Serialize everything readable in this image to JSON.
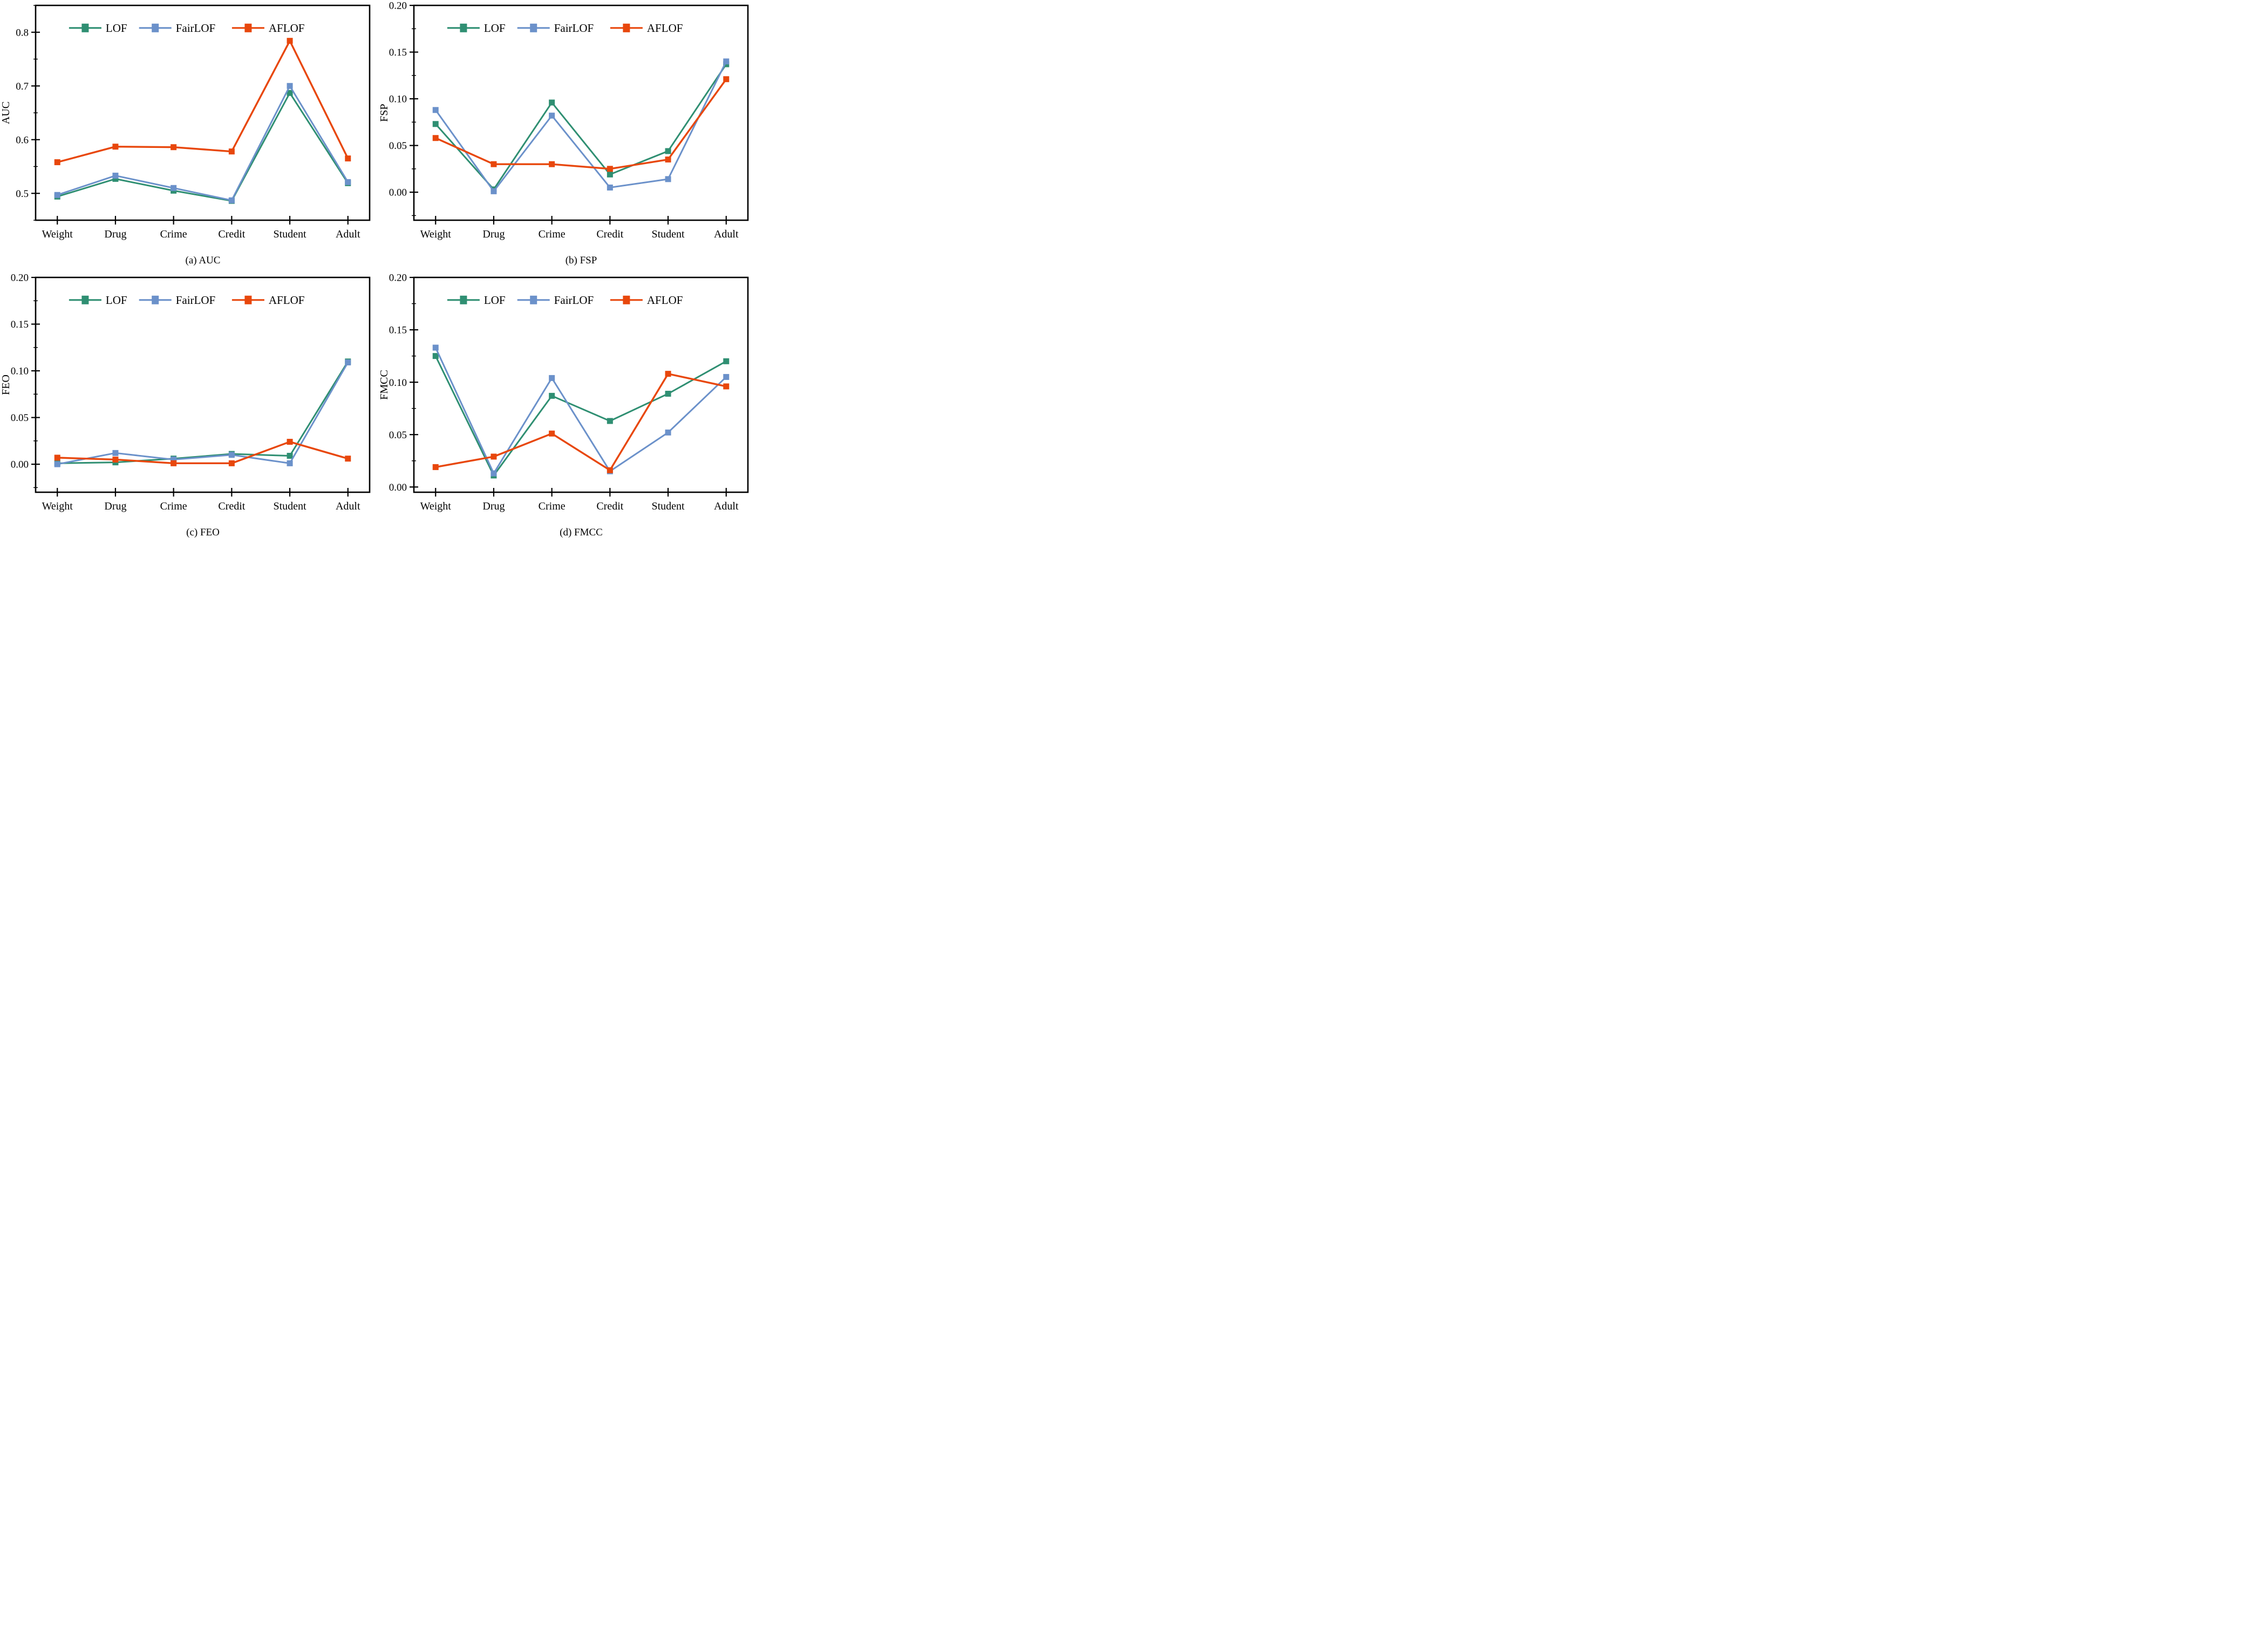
{
  "page": {
    "background": "#ffffff"
  },
  "colors": {
    "lof": "#2f8f72",
    "fairlof": "#6b91ca",
    "aflof": "#e8470c",
    "axis": "#000000",
    "text": "#000000"
  },
  "legend": {
    "items": [
      "LOF",
      "FairLOF",
      "AFLOF"
    ]
  },
  "chart_data": [
    {
      "type": "line",
      "title": "(a) AUC",
      "ylabel": "AUC",
      "xlabel": "",
      "categories": [
        "Weight",
        "Drug",
        "Crime",
        "Credit",
        "Student",
        "Adult"
      ],
      "ylim": [
        0.45,
        0.85
      ],
      "yticks": [
        0.5,
        0.6,
        0.7,
        0.8
      ],
      "ytick_labels": [
        "0.5",
        "0.6",
        "0.7",
        "0.8"
      ],
      "minor_step": 0.05,
      "grid": false,
      "legend_position": "top-inside",
      "series": [
        {
          "name": "LOF",
          "color_key": "lof",
          "values": [
            0.494,
            0.527,
            0.505,
            0.486,
            0.687,
            0.519
          ]
        },
        {
          "name": "FairLOF",
          "color_key": "fairlof",
          "values": [
            0.497,
            0.533,
            0.51,
            0.487,
            0.7,
            0.521
          ]
        },
        {
          "name": "AFLOF",
          "color_key": "aflof",
          "values": [
            0.558,
            0.587,
            0.586,
            0.578,
            0.784,
            0.565
          ]
        }
      ]
    },
    {
      "type": "line",
      "title": "(b) FSP",
      "ylabel": "FSP",
      "xlabel": "",
      "categories": [
        "Weight",
        "Drug",
        "Crime",
        "Credit",
        "Student",
        "Adult"
      ],
      "ylim": [
        -0.03,
        0.2
      ],
      "yticks": [
        0.0,
        0.05,
        0.1,
        0.15,
        0.2
      ],
      "ytick_labels": [
        "0.00",
        "0.05",
        "0.10",
        "0.15",
        "0.20"
      ],
      "minor_step": 0.025,
      "grid": false,
      "legend_position": "top-inside",
      "series": [
        {
          "name": "LOF",
          "color_key": "lof",
          "values": [
            0.073,
            0.003,
            0.096,
            0.019,
            0.044,
            0.137
          ]
        },
        {
          "name": "FairLOF",
          "color_key": "fairlof",
          "values": [
            0.088,
            0.001,
            0.082,
            0.005,
            0.014,
            0.14
          ]
        },
        {
          "name": "AFLOF",
          "color_key": "aflof",
          "values": [
            0.058,
            0.03,
            0.03,
            0.025,
            0.035,
            0.121
          ]
        }
      ]
    },
    {
      "type": "line",
      "title": "(c) FEO",
      "ylabel": "FEO",
      "xlabel": "",
      "categories": [
        "Weight",
        "Drug",
        "Crime",
        "Credit",
        "Student",
        "Adult"
      ],
      "ylim": [
        -0.03,
        0.2
      ],
      "yticks": [
        0.0,
        0.05,
        0.1,
        0.15,
        0.2
      ],
      "ytick_labels": [
        "0.00",
        "0.05",
        "0.10",
        "0.15",
        "0.20"
      ],
      "minor_step": 0.025,
      "grid": false,
      "legend_position": "top-inside",
      "series": [
        {
          "name": "LOF",
          "color_key": "lof",
          "values": [
            0.001,
            0.002,
            0.006,
            0.011,
            0.009,
            0.11
          ]
        },
        {
          "name": "FairLOF",
          "color_key": "fairlof",
          "values": [
            0.0,
            0.012,
            0.005,
            0.01,
            0.001,
            0.109
          ]
        },
        {
          "name": "AFLOF",
          "color_key": "aflof",
          "values": [
            0.007,
            0.005,
            0.001,
            0.001,
            0.024,
            0.006
          ]
        }
      ]
    },
    {
      "type": "line",
      "title": "(d) FMCC",
      "ylabel": "FMCC",
      "xlabel": "",
      "categories": [
        "Weight",
        "Drug",
        "Crime",
        "Credit",
        "Student",
        "Adult"
      ],
      "ylim": [
        -0.005,
        0.2
      ],
      "yticks": [
        0.0,
        0.05,
        0.1,
        0.15,
        0.2
      ],
      "ytick_labels": [
        "0.00",
        "0.05",
        "0.10",
        "0.15",
        "0.20"
      ],
      "minor_step": 0.025,
      "grid": false,
      "legend_position": "top-inside",
      "series": [
        {
          "name": "LOF",
          "color_key": "lof",
          "values": [
            0.125,
            0.011,
            0.087,
            0.063,
            0.089,
            0.12
          ]
        },
        {
          "name": "FairLOF",
          "color_key": "fairlof",
          "values": [
            0.133,
            0.013,
            0.104,
            0.015,
            0.052,
            0.105
          ]
        },
        {
          "name": "AFLOF",
          "color_key": "aflof",
          "values": [
            0.019,
            0.029,
            0.051,
            0.016,
            0.108,
            0.096
          ]
        }
      ]
    }
  ]
}
